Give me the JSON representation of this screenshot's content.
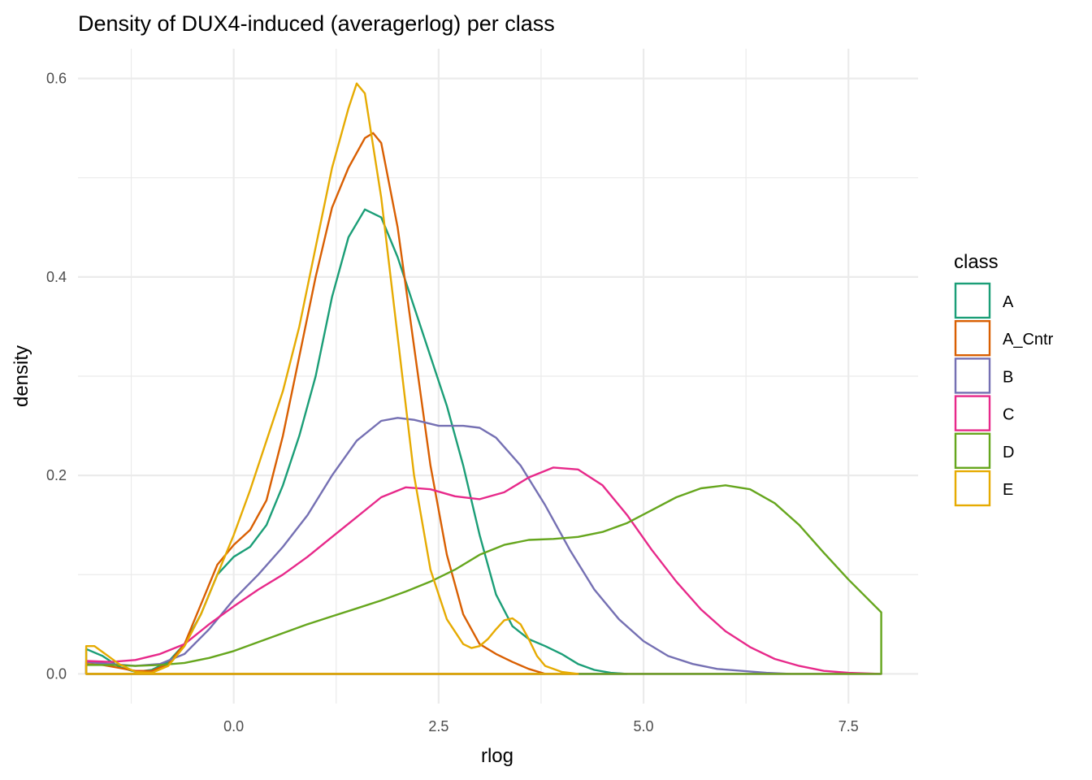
{
  "chart_data": {
    "type": "line",
    "title": "Density of DUX4-induced (averagerlog) per class",
    "xlabel": "rlog",
    "ylabel": "density",
    "xlim": [
      -1.9,
      8.35
    ],
    "ylim": [
      -0.03,
      0.63
    ],
    "x_ticks": [
      0.0,
      2.5,
      5.0,
      7.5
    ],
    "x_tick_labels": [
      "0.0",
      "2.5",
      "5.0",
      "7.5"
    ],
    "x_minor_ticks": [
      -1.25,
      1.25,
      3.75,
      6.25
    ],
    "y_ticks": [
      0.0,
      0.2,
      0.4,
      0.6
    ],
    "y_tick_labels": [
      "0.0",
      "0.2",
      "0.4",
      "0.6"
    ],
    "y_minor_ticks": [
      0.1,
      0.3,
      0.5
    ],
    "grid": true,
    "legend_title": "class",
    "legend_position": "right",
    "series": [
      {
        "name": "A",
        "color": "#1B9E77",
        "x": [
          -1.8,
          -1.6,
          -1.4,
          -1.2,
          -1.0,
          -0.8,
          -0.6,
          -0.4,
          -0.2,
          0.0,
          0.2,
          0.4,
          0.6,
          0.8,
          1.0,
          1.2,
          1.4,
          1.6,
          1.8,
          2.0,
          2.2,
          2.4,
          2.6,
          2.8,
          3.0,
          3.2,
          3.4,
          3.6,
          3.8,
          4.0,
          4.2,
          4.4,
          4.6,
          4.8
        ],
        "y": [
          0.025,
          0.018,
          0.007,
          0.002,
          0.004,
          0.012,
          0.03,
          0.06,
          0.1,
          0.118,
          0.128,
          0.15,
          0.19,
          0.24,
          0.3,
          0.38,
          0.44,
          0.468,
          0.46,
          0.42,
          0.37,
          0.32,
          0.27,
          0.21,
          0.14,
          0.08,
          0.048,
          0.035,
          0.028,
          0.02,
          0.01,
          0.004,
          0.001,
          0.0
        ]
      },
      {
        "name": "A_Cntr",
        "color": "#D95F02",
        "x": [
          -1.8,
          -1.6,
          -1.4,
          -1.2,
          -1.0,
          -0.8,
          -0.6,
          -0.4,
          -0.2,
          0.0,
          0.2,
          0.4,
          0.6,
          0.8,
          1.0,
          1.2,
          1.4,
          1.6,
          1.7,
          1.8,
          2.0,
          2.2,
          2.4,
          2.6,
          2.8,
          3.0,
          3.2,
          3.4,
          3.6,
          3.8
        ],
        "y": [
          0.01,
          0.009,
          0.006,
          0.003,
          0.003,
          0.01,
          0.03,
          0.07,
          0.11,
          0.13,
          0.145,
          0.175,
          0.24,
          0.32,
          0.4,
          0.47,
          0.51,
          0.54,
          0.545,
          0.535,
          0.45,
          0.33,
          0.21,
          0.12,
          0.06,
          0.03,
          0.02,
          0.012,
          0.005,
          0.0
        ]
      },
      {
        "name": "B",
        "color": "#7570B3",
        "x": [
          -1.8,
          -1.5,
          -1.2,
          -0.9,
          -0.6,
          -0.3,
          0.0,
          0.3,
          0.6,
          0.9,
          1.2,
          1.5,
          1.8,
          2.0,
          2.2,
          2.5,
          2.8,
          3.0,
          3.2,
          3.5,
          3.8,
          4.1,
          4.4,
          4.7,
          5.0,
          5.3,
          5.6,
          5.9,
          6.2,
          6.5,
          6.8,
          7.1,
          7.4,
          7.9
        ],
        "y": [
          0.012,
          0.01,
          0.008,
          0.01,
          0.02,
          0.045,
          0.075,
          0.1,
          0.128,
          0.16,
          0.2,
          0.235,
          0.255,
          0.258,
          0.256,
          0.25,
          0.25,
          0.248,
          0.238,
          0.21,
          0.17,
          0.125,
          0.085,
          0.055,
          0.033,
          0.018,
          0.01,
          0.005,
          0.003,
          0.001,
          0.0,
          0.0,
          0.0,
          0.0
        ]
      },
      {
        "name": "C",
        "color": "#E7298A",
        "x": [
          -1.8,
          -1.5,
          -1.2,
          -0.9,
          -0.6,
          -0.3,
          0.0,
          0.3,
          0.6,
          0.9,
          1.2,
          1.5,
          1.8,
          2.1,
          2.4,
          2.7,
          3.0,
          3.3,
          3.6,
          3.9,
          4.2,
          4.5,
          4.8,
          5.1,
          5.4,
          5.7,
          6.0,
          6.3,
          6.6,
          6.9,
          7.2,
          7.5,
          7.9
        ],
        "y": [
          0.013,
          0.012,
          0.014,
          0.02,
          0.03,
          0.05,
          0.068,
          0.085,
          0.1,
          0.118,
          0.138,
          0.158,
          0.178,
          0.188,
          0.186,
          0.179,
          0.176,
          0.183,
          0.198,
          0.208,
          0.206,
          0.19,
          0.16,
          0.125,
          0.093,
          0.065,
          0.043,
          0.027,
          0.015,
          0.008,
          0.003,
          0.001,
          0.0
        ]
      },
      {
        "name": "D",
        "color": "#66A61E",
        "x": [
          -1.8,
          -1.5,
          -1.2,
          -0.9,
          -0.6,
          -0.3,
          0.0,
          0.3,
          0.6,
          0.9,
          1.2,
          1.5,
          1.8,
          2.1,
          2.4,
          2.7,
          3.0,
          3.3,
          3.6,
          3.9,
          4.2,
          4.5,
          4.8,
          5.1,
          5.4,
          5.7,
          6.0,
          6.3,
          6.6,
          6.9,
          7.2,
          7.5,
          7.9
        ],
        "y": [
          0.009,
          0.009,
          0.008,
          0.009,
          0.011,
          0.016,
          0.023,
          0.032,
          0.041,
          0.05,
          0.058,
          0.066,
          0.074,
          0.083,
          0.093,
          0.105,
          0.12,
          0.13,
          0.135,
          0.136,
          0.138,
          0.143,
          0.152,
          0.165,
          0.178,
          0.187,
          0.19,
          0.186,
          0.172,
          0.15,
          0.122,
          0.095,
          0.062
        ]
      },
      {
        "name": "E",
        "color": "#E6AB02",
        "x": [
          -1.8,
          -1.7,
          -1.6,
          -1.4,
          -1.2,
          -1.0,
          -0.8,
          -0.6,
          -0.4,
          -0.2,
          0.0,
          0.2,
          0.4,
          0.6,
          0.8,
          1.0,
          1.2,
          1.4,
          1.5,
          1.6,
          1.8,
          2.0,
          2.2,
          2.4,
          2.6,
          2.8,
          2.9,
          3.0,
          3.1,
          3.2,
          3.3,
          3.4,
          3.5,
          3.6,
          3.7,
          3.8,
          4.0,
          4.2
        ],
        "y": [
          0.028,
          0.028,
          0.022,
          0.01,
          0.002,
          0.001,
          0.008,
          0.028,
          0.06,
          0.1,
          0.14,
          0.185,
          0.235,
          0.285,
          0.35,
          0.43,
          0.51,
          0.57,
          0.595,
          0.585,
          0.48,
          0.34,
          0.2,
          0.105,
          0.055,
          0.03,
          0.026,
          0.028,
          0.035,
          0.045,
          0.054,
          0.056,
          0.05,
          0.035,
          0.018,
          0.008,
          0.002,
          0.0
        ]
      }
    ]
  }
}
